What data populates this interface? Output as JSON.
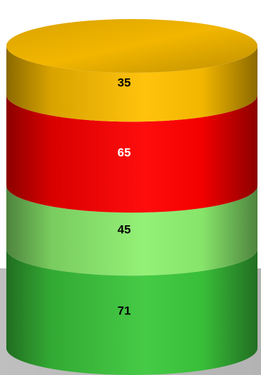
{
  "chart_data": {
    "type": "bar",
    "subtype": "stacked-3d-cylinder",
    "categories": [
      ""
    ],
    "series": [
      {
        "values": [
          71
        ],
        "color": "#3cc83c",
        "label_color": "#000000"
      },
      {
        "values": [
          45
        ],
        "color": "#8ef070",
        "label_color": "#000000"
      },
      {
        "values": [
          65
        ],
        "color": "#ff0000",
        "label_color": "#ffffff"
      },
      {
        "values": [
          35
        ],
        "color": "#ffc000",
        "label_color": "#000000"
      }
    ],
    "title": "",
    "xlabel": "",
    "ylabel": "",
    "grid": false,
    "legend": "none"
  }
}
